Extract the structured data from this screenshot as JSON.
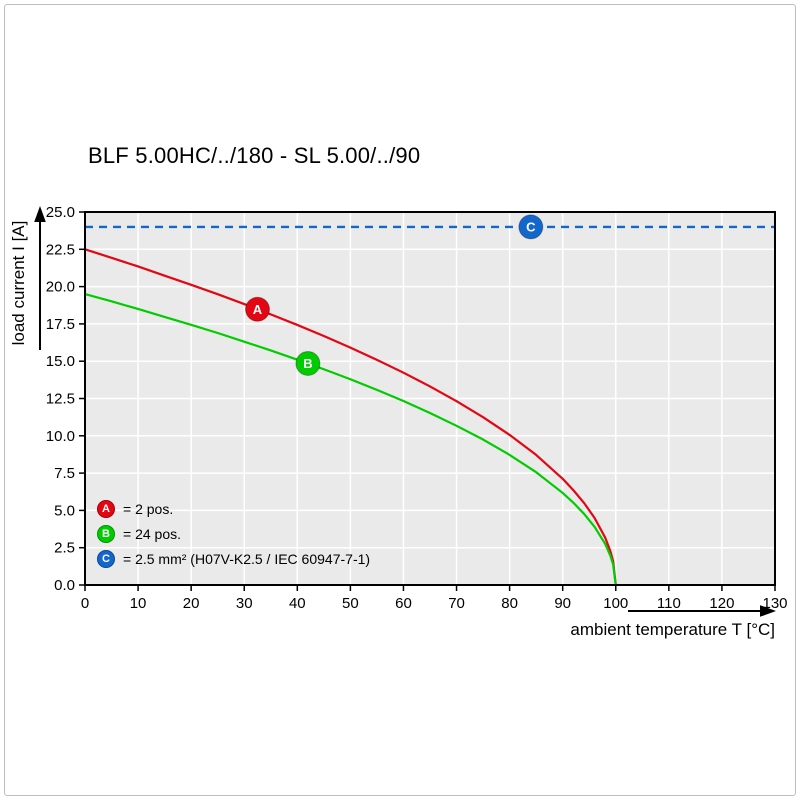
{
  "page": {
    "title": "BLF 5.00HC/../180 - SL 5.00/../90"
  },
  "chart_data": {
    "type": "line",
    "title": "BLF 5.00HC/../180 - SL 5.00/../90",
    "xlabel": "ambient temperature T [°C]",
    "ylabel": "load current I [A]",
    "xlim": [
      0,
      130
    ],
    "ylim": [
      0,
      25
    ],
    "x_ticks": [
      0,
      10,
      20,
      30,
      40,
      50,
      60,
      70,
      80,
      90,
      100,
      110,
      120,
      130
    ],
    "x_tick_labels": [
      "0",
      "10",
      "20",
      "30",
      "40",
      "50",
      "60",
      "70",
      "80",
      "90",
      "100",
      "110",
      "120",
      "130"
    ],
    "y_ticks": [
      0,
      2.5,
      5,
      7.5,
      10,
      12.5,
      15,
      17.5,
      20,
      22.5,
      25
    ],
    "y_tick_labels": [
      "0.0",
      "2.5",
      "5.0",
      "7.5",
      "10.0",
      "12.5",
      "15.0",
      "17.5",
      "20.0",
      "22.5",
      "25.0"
    ],
    "grid": true,
    "legend_position": "inside bottom-left",
    "colors": {
      "plot_bg": "#eaeaea",
      "grid": "#ffffff",
      "axis": "#000000",
      "red": "#e30613",
      "green": "#00cc00",
      "blue": "#1266cc"
    },
    "series": [
      {
        "id": "A",
        "legend_label": "= 2 pos.",
        "color": "#e30613",
        "style": "solid",
        "x": [
          0,
          5,
          10,
          15,
          20,
          25,
          30,
          35,
          40,
          45,
          50,
          55,
          60,
          65,
          70,
          75,
          80,
          85,
          90,
          92,
          94,
          96,
          98,
          99,
          99.5,
          100
        ],
        "y": [
          22.5,
          21.93,
          21.35,
          20.73,
          20.12,
          19.49,
          18.83,
          18.14,
          17.43,
          16.69,
          15.91,
          15.09,
          14.23,
          13.31,
          12.32,
          11.25,
          10.06,
          8.72,
          7.12,
          6.36,
          5.51,
          4.5,
          3.18,
          2.25,
          1.59,
          0
        ],
        "marker": {
          "x": 32.5,
          "y": 18.48
        }
      },
      {
        "id": "B",
        "legend_label": "= 24 pos.",
        "color": "#00cc00",
        "style": "solid",
        "x": [
          0,
          5,
          10,
          15,
          20,
          25,
          30,
          35,
          40,
          45,
          50,
          55,
          60,
          65,
          70,
          75,
          80,
          85,
          90,
          92,
          94,
          96,
          98,
          99,
          99.5,
          100
        ],
        "y": [
          19.5,
          19.01,
          18.5,
          17.97,
          17.44,
          16.89,
          16.31,
          15.72,
          15.1,
          14.46,
          13.79,
          13.08,
          12.33,
          11.53,
          10.67,
          9.75,
          8.72,
          7.56,
          6.17,
          5.52,
          4.78,
          3.9,
          2.76,
          1.95,
          1.38,
          0
        ],
        "marker": {
          "x": 42,
          "y": 14.85
        }
      },
      {
        "id": "C",
        "legend_label": "= 2.5 mm² (H07V-K2.5 / IEC 60947-7-1)",
        "color": "#1266cc",
        "style": "dashed",
        "y_const": 24,
        "marker": {
          "x": 84,
          "y": 24
        }
      }
    ]
  }
}
